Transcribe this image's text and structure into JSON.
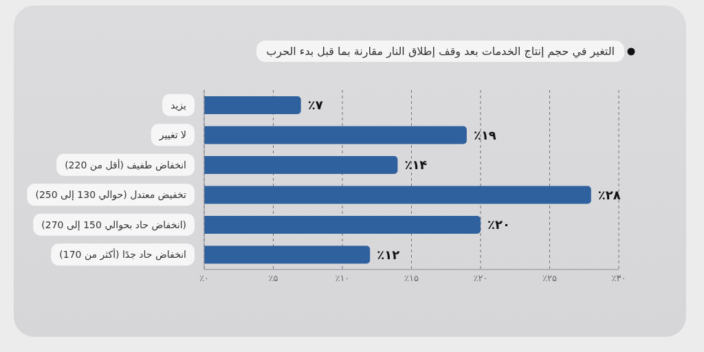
{
  "chart_data": {
    "type": "bar",
    "orientation": "horizontal",
    "title": "التغير في حجم إنتاج الخدمات بعد وقف إطلاق النار مقارنة بما قبل بدء الحرب",
    "categories": [
      "يزيد",
      "لا تغيير",
      "انخفاض طفيف (أقل من 220)",
      "تخفيض معتدل (حوالي 130 إلى 250)",
      "(انخفاض حاد بحوالي 150 إلى 270)",
      "انخفاض حاد جدًا (أكثر من 170)"
    ],
    "values": [
      7,
      19,
      14,
      28,
      20,
      12
    ],
    "value_labels": [
      "٪۷",
      "٪۱۹",
      "٪۱۴",
      "٪۲۸",
      "٪۲۰",
      "٪۱۲"
    ],
    "color": "#2f619e",
    "xlim": [
      0,
      30
    ],
    "xticks": [
      {
        "value": 0,
        "label": "٪۰"
      },
      {
        "value": 5,
        "label": "٪۵"
      },
      {
        "value": 10,
        "label": "٪۱۰"
      },
      {
        "value": 15,
        "label": "٪۱۵"
      },
      {
        "value": 20,
        "label": "٪۲۰"
      },
      {
        "value": 25,
        "label": "٪۲۵"
      },
      {
        "value": 30,
        "label": "٪۳۰"
      }
    ],
    "grid": "x"
  }
}
